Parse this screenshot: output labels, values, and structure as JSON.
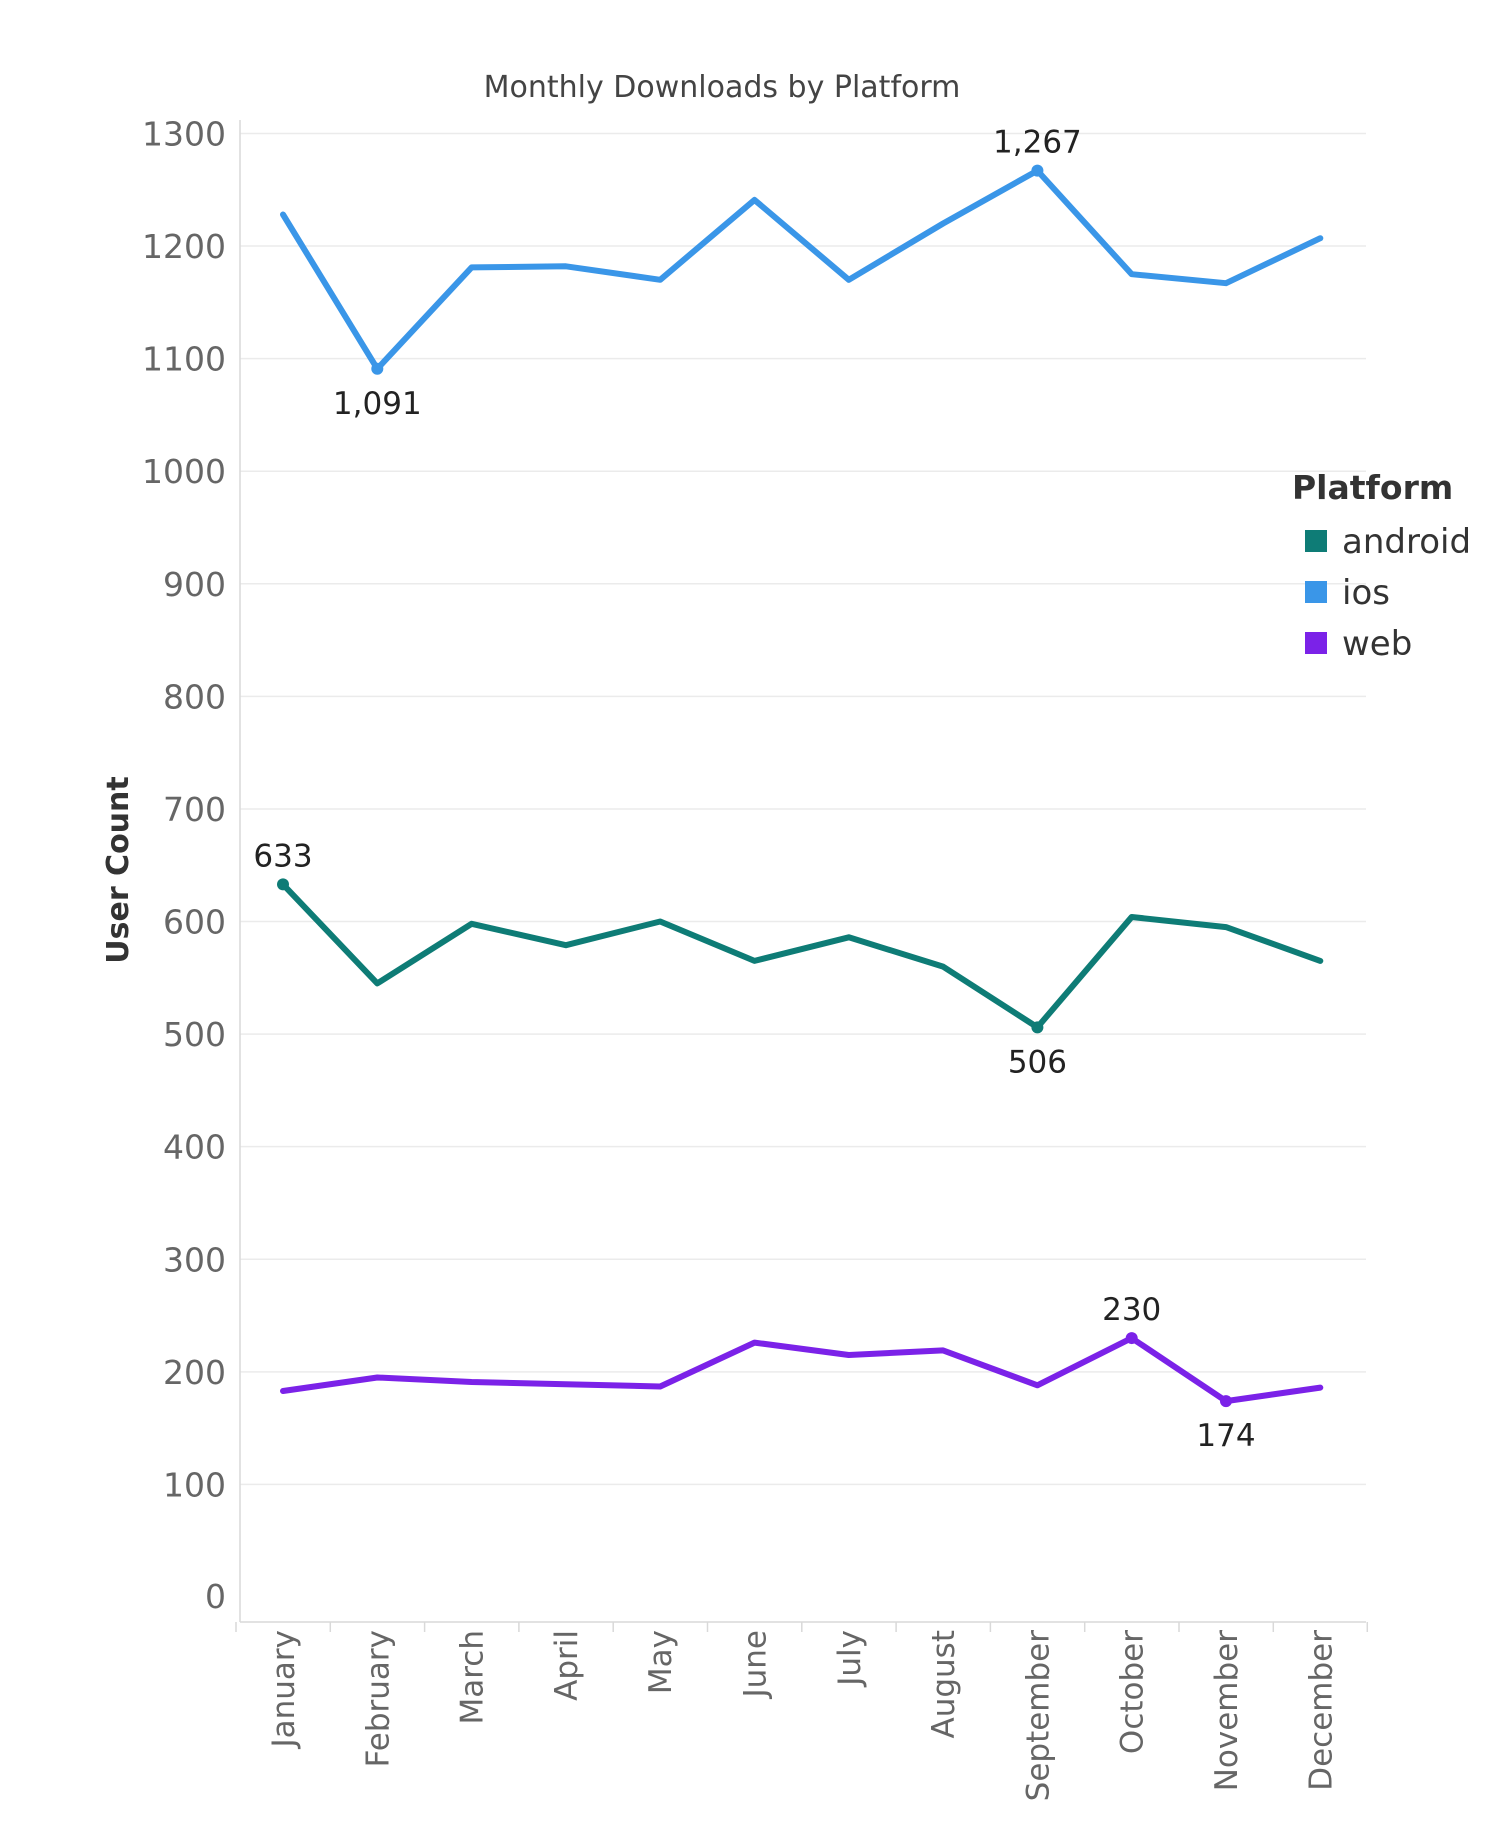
{
  "chart_data": {
    "type": "line",
    "title": "Monthly Downloads by Platform",
    "xlabel": "",
    "ylabel": "User Count",
    "ylim": [
      0,
      1300
    ],
    "yticks": [
      0,
      100,
      200,
      300,
      400,
      500,
      600,
      700,
      800,
      900,
      1000,
      1100,
      1200,
      1300
    ],
    "grid": true,
    "legend_title": "Platform",
    "legend_position": "right",
    "categories": [
      "January",
      "February",
      "March",
      "April",
      "May",
      "June",
      "July",
      "August",
      "September",
      "October",
      "November",
      "December"
    ],
    "series": [
      {
        "name": "android",
        "color": "#0e7c76",
        "values": [
          633,
          545,
          598,
          579,
          600,
          565,
          586,
          560,
          506,
          604,
          595,
          565
        ]
      },
      {
        "name": "ios",
        "color": "#3a96e8",
        "values": [
          1228,
          1091,
          1181,
          1182,
          1170,
          1241,
          1170,
          1220,
          1267,
          1175,
          1167,
          1207
        ]
      },
      {
        "name": "web",
        "color": "#7b22e8",
        "values": [
          183,
          195,
          191,
          189,
          187,
          226,
          215,
          219,
          188,
          230,
          174,
          186
        ]
      }
    ],
    "annotations": [
      {
        "series": "ios",
        "category": "February",
        "value": 1091,
        "text": "1,091",
        "placement": "below"
      },
      {
        "series": "ios",
        "category": "September",
        "value": 1267,
        "text": "1,267",
        "placement": "above"
      },
      {
        "series": "android",
        "category": "January",
        "value": 633,
        "text": "633",
        "placement": "above"
      },
      {
        "series": "android",
        "category": "September",
        "value": 506,
        "text": "506",
        "placement": "below"
      },
      {
        "series": "web",
        "category": "October",
        "value": 230,
        "text": "230",
        "placement": "above"
      },
      {
        "series": "web",
        "category": "November",
        "value": 174,
        "text": "174",
        "placement": "below"
      }
    ]
  }
}
